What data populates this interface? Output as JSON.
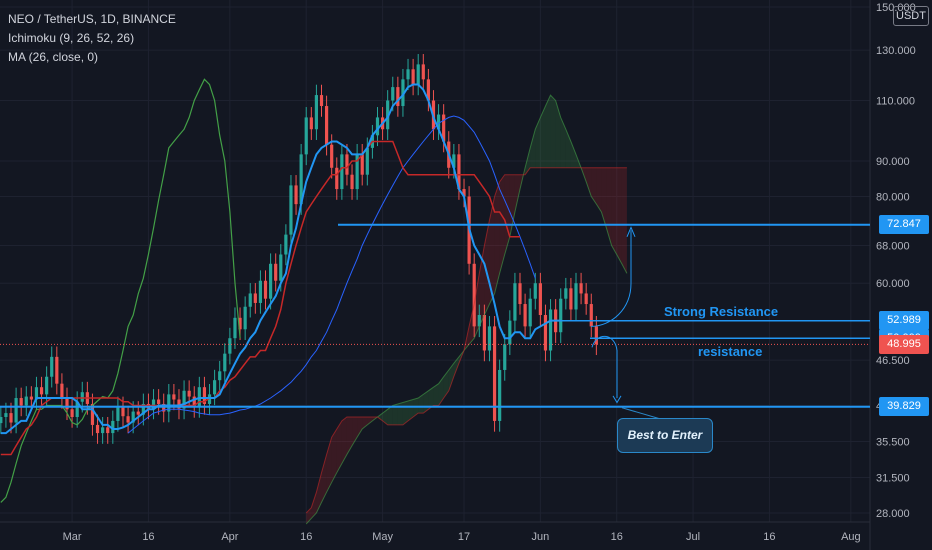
{
  "header": {
    "symbol": "NEO / TetherUS, 1D, BINANCE",
    "indicator1": "Ichimoku (9, 26, 52, 26)",
    "indicator2": "MA (26, close, 0)"
  },
  "currency": "USDT",
  "colors": {
    "background": "#131722",
    "grid": "#1e2230",
    "up": "#26a69a",
    "down": "#ef5350",
    "conversion": "#2196f3",
    "base": "#c62828",
    "lagging": "#43a047",
    "ma": "#2962ff",
    "annotation": "#2196f3"
  },
  "annotations": {
    "strong_resistance": "Strong Resistance",
    "resistance": "resistance",
    "best_to_enter": "Best to Enter"
  },
  "price_tags": [
    {
      "label": "72.847",
      "value": 72.847,
      "color": "#2196f3"
    },
    {
      "label": "52.989",
      "value": 52.989,
      "color": "#2196f3"
    },
    {
      "label": "50.000",
      "value": 50.0,
      "color": "#2196f3"
    },
    {
      "label": "48.995",
      "value": 48.995,
      "color": "#ef5350"
    },
    {
      "label": "39.829",
      "value": 39.829,
      "color": "#2196f3"
    }
  ],
  "chart_data": {
    "type": "candlestick",
    "scale": "log",
    "y_ticks": [
      "28.000",
      "31.500",
      "35.500",
      "40.000",
      "46.500",
      "60.000",
      "68.000",
      "80.000",
      "90.000",
      "110.000",
      "130.000",
      "150.000"
    ],
    "y_tick_values": [
      28,
      31.5,
      35.5,
      40,
      46.5,
      60,
      68,
      80,
      90,
      110,
      130,
      150
    ],
    "x_ticks": [
      "Mar",
      "16",
      "Apr",
      "16",
      "May",
      "17",
      "Jun",
      "16",
      "Jul",
      "16",
      "Aug"
    ],
    "x_tick_days": [
      1,
      16,
      32,
      47,
      62,
      78,
      93,
      108,
      123,
      138,
      154
    ],
    "horizontal_levels": [
      72.847,
      52.989,
      50.0,
      39.829
    ],
    "current_price": 48.995,
    "candle_close": [
      38.5,
      39,
      37.8,
      41,
      40,
      41.2,
      40.8,
      42.5,
      41.5,
      44,
      47,
      43,
      41,
      39.5,
      38.5,
      40.5,
      41.8,
      40.2,
      37.5,
      36.5,
      37.2,
      36.5,
      38,
      39.8,
      38.6,
      37.8,
      39.2,
      38.8,
      40.2,
      39.6,
      40.8,
      40.2,
      39.2,
      41.5,
      40.8,
      39.6,
      42,
      41.2,
      39.8,
      42.5,
      40.2,
      41.5,
      43.5,
      44.8,
      47.5,
      50,
      53.5,
      51.5,
      55.5,
      58,
      56.2,
      60.5,
      57,
      64,
      60.5,
      66,
      70.5,
      83,
      78,
      92,
      104,
      100,
      112,
      108,
      95,
      88,
      82,
      92,
      86,
      82,
      92,
      86,
      94,
      98,
      104,
      100,
      110,
      115,
      108,
      118,
      122,
      116,
      124,
      118,
      110,
      100,
      105,
      96,
      88,
      92,
      82,
      80,
      64,
      52,
      54,
      48,
      52,
      38,
      45,
      49,
      53,
      60,
      56,
      52,
      57,
      60,
      54,
      48,
      55,
      51,
      57,
      59,
      55,
      60,
      58,
      56,
      52,
      49
    ],
    "tenkan": [
      36.5,
      36.5,
      37,
      37.5,
      38,
      38,
      39.5,
      41,
      41,
      41,
      41,
      41,
      41,
      41,
      41,
      40.5,
      39.5,
      39.5,
      39.5,
      38.5,
      37.5,
      37.5,
      37,
      37,
      37.2,
      37.5,
      38,
      38.5,
      39,
      39.5,
      39.5,
      40,
      40,
      40,
      40,
      40,
      40.2,
      40.5,
      40.8,
      41,
      41,
      41,
      41,
      41.5,
      43,
      44.5,
      46,
      47.5,
      48.5,
      50,
      51,
      53,
      54.5,
      56,
      57.5,
      60,
      62,
      68,
      72,
      78,
      84,
      88,
      92,
      94,
      95,
      96,
      96,
      95,
      94,
      92,
      92,
      92,
      94,
      98,
      100,
      102,
      104,
      108,
      110,
      112,
      115,
      116,
      116,
      114,
      110,
      104,
      100,
      96,
      92,
      88,
      82,
      80,
      72,
      68,
      66,
      64,
      60,
      56,
      52,
      50,
      50,
      51,
      51,
      50,
      50,
      51.5,
      52,
      52.5,
      53,
      53,
      53
    ],
    "kijun": [
      34,
      34,
      34,
      35,
      36,
      37,
      37.5,
      38.5,
      40,
      40.5,
      41,
      41,
      41,
      41,
      41,
      41,
      41,
      41,
      41,
      41,
      41,
      41,
      41,
      41,
      40.5,
      40.5,
      40,
      40,
      40,
      40,
      40,
      40,
      40,
      40,
      40,
      40,
      40,
      40,
      40,
      40.5,
      40.5,
      41,
      41,
      42,
      42.5,
      43.5,
      44,
      45,
      46,
      47,
      47,
      48,
      48,
      50,
      52,
      55,
      60,
      64,
      68,
      72,
      76,
      78,
      80,
      82,
      84,
      86,
      86,
      88,
      88,
      90,
      90,
      92,
      94,
      96,
      96,
      96,
      96,
      96,
      92,
      88,
      86,
      86,
      86,
      86,
      86,
      86,
      86,
      86,
      86,
      86,
      86,
      86,
      86,
      86,
      84,
      82,
      80,
      76,
      76,
      74,
      70,
      70,
      70
    ],
    "ma26": [
      36.5,
      37,
      37.5,
      38,
      38.5,
      39,
      39.2,
      39.4,
      39.5,
      39.5,
      39.5,
      39.4,
      39.3,
      39.2,
      39,
      38.9,
      38.8,
      38.8,
      38.8,
      38.9,
      39,
      39.2,
      39.4,
      39.5,
      39.7,
      39.9,
      40.2,
      40.6,
      41,
      41.5,
      42,
      42.6,
      43.2,
      44,
      44.8,
      45.8,
      47,
      48,
      49.5,
      51,
      53,
      55,
      57.5,
      60,
      62.5,
      65,
      68,
      70.5,
      73,
      75.5,
      78,
      80.5,
      83,
      85.5,
      88,
      90,
      92,
      94,
      96,
      98,
      100,
      102,
      103,
      104,
      104.5,
      104,
      103,
      101,
      99,
      96,
      93,
      90,
      86,
      82,
      79,
      76,
      73,
      70,
      67,
      64,
      61
    ],
    "lagging_span": [
      29,
      29.5,
      31,
      33,
      35,
      36.5,
      38,
      39.5,
      39.5,
      40,
      40,
      40,
      40,
      39,
      37.8,
      37.5,
      38.2,
      39.5,
      40,
      40.6,
      41.2,
      41,
      42,
      44.5,
      48,
      52,
      54,
      58,
      61,
      66,
      72,
      79,
      86,
      94,
      96,
      98,
      100,
      104,
      110,
      114,
      118,
      116,
      110,
      98,
      90,
      76,
      60,
      50
    ],
    "senkou_a": [
      27,
      27.5,
      28,
      29,
      30,
      31,
      32,
      33,
      34,
      35,
      36,
      37,
      37.5,
      38,
      38.5,
      39,
      39.5,
      40,
      40.2,
      40.4,
      40.6,
      40.8,
      41,
      41.5,
      42,
      42.5,
      43,
      44,
      45,
      46,
      47,
      48,
      49,
      50,
      52,
      54,
      56,
      58,
      62,
      66,
      70,
      76,
      82,
      88,
      94,
      100,
      104,
      108,
      112,
      110,
      104,
      100,
      96,
      92,
      88,
      84,
      80,
      78,
      76,
      72,
      68,
      66,
      64,
      62
    ],
    "senkou_b": [
      28,
      28.5,
      30,
      32,
      34,
      36,
      37,
      38,
      38.5,
      38.5,
      38.5,
      38.5,
      38.5,
      38.5,
      38.5,
      38,
      37.5,
      37.5,
      37.5,
      37.5,
      38,
      38.5,
      39,
      39,
      39.5,
      40,
      40,
      41,
      42,
      44,
      46,
      48,
      52,
      56,
      62,
      68,
      74,
      80,
      84,
      86,
      86,
      86,
      86,
      86,
      88,
      88,
      88,
      88,
      88,
      88,
      88,
      88,
      88,
      88,
      88,
      88,
      88,
      88,
      88,
      88,
      88,
      88,
      88,
      88
    ],
    "cloud_start_day": 47
  }
}
